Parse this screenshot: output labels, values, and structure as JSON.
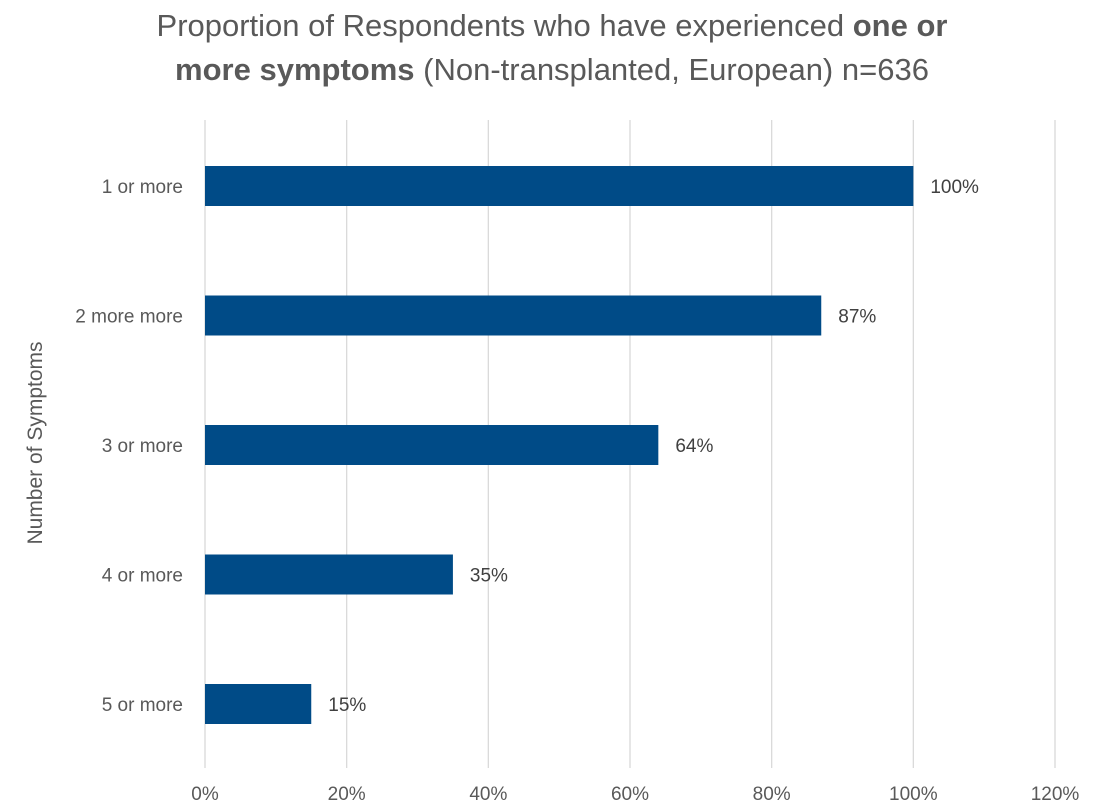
{
  "title": {
    "part1": "Proportion of Respondents who have experienced ",
    "bold1": "one or",
    "bold2": "more symptoms",
    "part2": " (Non-transplanted, European)  n=636"
  },
  "colors": {
    "bar": "#004b87",
    "grid": "#d9d9d9",
    "text": "#595959"
  },
  "chart_data": {
    "type": "bar",
    "orientation": "horizontal",
    "title": "Proportion of Respondents who have experienced one or more symptoms (Non-transplanted, European)  n=636",
    "ylabel": "Number of Symptoms",
    "xlabel": "",
    "categories": [
      "1 or more",
      "2 more more",
      "3 or more",
      "4 or more",
      "5 or more"
    ],
    "values": [
      100,
      87,
      64,
      35,
      15
    ],
    "data_labels": [
      "100%",
      "87%",
      "64%",
      "35%",
      "15%"
    ],
    "xlim": [
      0,
      120
    ],
    "x_ticks": [
      "0%",
      "20%",
      "40%",
      "60%",
      "80%",
      "100%",
      "120%"
    ],
    "grid": true,
    "legend": "none"
  }
}
